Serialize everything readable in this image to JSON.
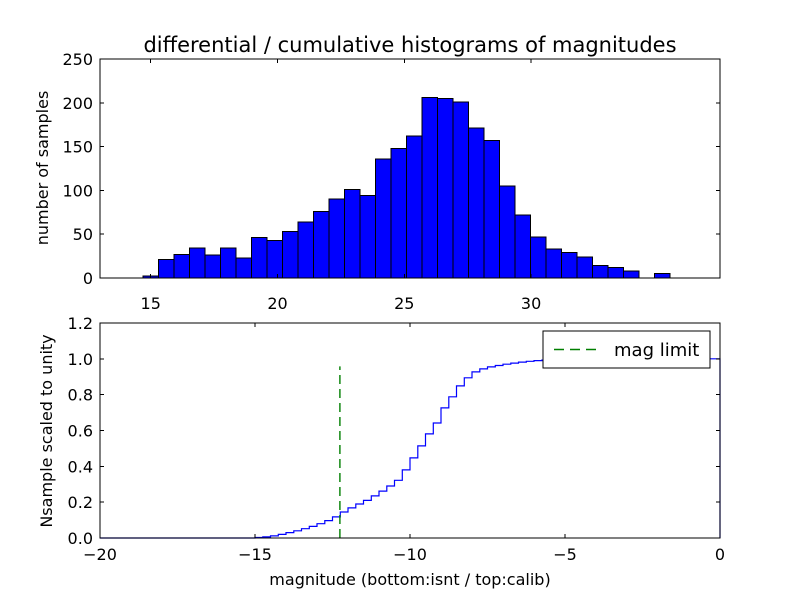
{
  "figure": {
    "background": "#ffffff"
  },
  "chart_data": [
    {
      "type": "bar",
      "title": "differential / cumulative histograms of magnitudes",
      "ylabel": "number of samples",
      "xlabel": "",
      "xlim": [
        13.0,
        37.45
      ],
      "ylim": [
        0,
        250
      ],
      "xticks": [
        15,
        20,
        25,
        30
      ],
      "xtick_labels": [
        "15",
        "20",
        "25",
        "30"
      ],
      "yticks": [
        0,
        50,
        100,
        150,
        200,
        250
      ],
      "ytick_labels": [
        "0",
        "50",
        "100",
        "150",
        "200",
        "250"
      ],
      "grid": false,
      "bar_color": "#0000ff",
      "bar_edge_color": "#000000",
      "bin_start": 14.7,
      "bin_width": 0.611,
      "values": [
        2,
        21,
        27,
        34,
        26,
        34,
        23,
        46,
        43,
        53,
        64,
        76,
        90,
        101,
        94,
        136,
        148,
        162,
        206,
        205,
        201,
        171,
        157,
        105,
        72,
        47,
        33,
        29,
        24,
        14,
        12,
        8,
        0,
        5,
        0,
        0
      ]
    },
    {
      "type": "line",
      "title": "",
      "ylabel": "Nsample scaled to unity",
      "xlabel": "magnitude (bottom:isnt / top:calib)",
      "xlim": [
        -20,
        0
      ],
      "ylim": [
        0.0,
        1.2
      ],
      "xticks": [
        -20,
        -15,
        -10,
        -5,
        0
      ],
      "xtick_labels": [
        "−20",
        "−15",
        "−10",
        "−5",
        "0"
      ],
      "yticks": [
        0.0,
        0.2,
        0.4,
        0.6,
        0.8,
        1.0,
        1.2
      ],
      "ytick_labels": [
        "0.0",
        "0.2",
        "0.4",
        "0.6",
        "0.8",
        "1.0",
        "1.2"
      ],
      "grid": false,
      "line_color": "#0000ff",
      "step_start": -15.0,
      "step_dx": 0.25,
      "step_values": [
        0.003,
        0.006,
        0.012,
        0.02,
        0.03,
        0.04,
        0.052,
        0.065,
        0.08,
        0.097,
        0.118,
        0.145,
        0.168,
        0.19,
        0.21,
        0.235,
        0.262,
        0.29,
        0.322,
        0.38,
        0.447,
        0.514,
        0.581,
        0.642,
        0.726,
        0.788,
        0.849,
        0.894,
        0.927,
        0.944,
        0.955,
        0.963,
        0.97,
        0.976,
        0.982,
        0.986,
        0.99,
        0.993,
        0.995,
        0.997,
        0.998,
        0.999,
        1.0
      ],
      "flat_value_to_right_edge": 1.0,
      "vline": {
        "x": -12.26,
        "ymin": 0.0,
        "ymax": 0.958,
        "color": "#007f00",
        "style": "dashed"
      },
      "legend": {
        "label": "mag limit",
        "position": "upper right",
        "line_color": "#007f00",
        "line_style": "dashed"
      }
    }
  ]
}
